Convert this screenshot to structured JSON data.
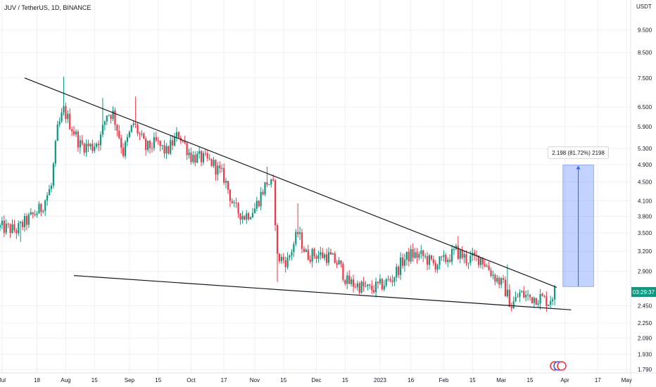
{
  "chart_data": {
    "type": "candlestick",
    "title": "JUV / TetherUS, 1D, BINANCE",
    "y_unit": "USDT",
    "y_scale": "log",
    "ylim": [
      1.76,
      11.0
    ],
    "y_ticks": [
      "9.500",
      "8.500",
      "7.500",
      "6.500",
      "5.900",
      "5.300",
      "4.900",
      "4.500",
      "4.100",
      "3.800",
      "3.500",
      "3.200",
      "2.900",
      "2.450",
      "2.250",
      "2.090",
      "1.930",
      "1.790"
    ],
    "x_ticks": [
      {
        "date": "2022-07-01",
        "label": "Jul"
      },
      {
        "date": "2022-07-18",
        "label": "18"
      },
      {
        "date": "2022-08-01",
        "label": "Aug"
      },
      {
        "date": "2022-08-15",
        "label": "15"
      },
      {
        "date": "2022-09-01",
        "label": "Sep"
      },
      {
        "date": "2022-09-15",
        "label": "15"
      },
      {
        "date": "2022-10-01",
        "label": "Oct"
      },
      {
        "date": "2022-10-17",
        "label": "17"
      },
      {
        "date": "2022-11-01",
        "label": "Nov"
      },
      {
        "date": "2022-11-15",
        "label": "15"
      },
      {
        "date": "2022-12-01",
        "label": "Dec"
      },
      {
        "date": "2022-12-15",
        "label": "15"
      },
      {
        "date": "2023-01-01",
        "label": "2023"
      },
      {
        "date": "2023-01-16",
        "label": "16"
      },
      {
        "date": "2023-02-01",
        "label": "Feb"
      },
      {
        "date": "2023-02-15",
        "label": "15"
      },
      {
        "date": "2023-03-01",
        "label": "Mar"
      },
      {
        "date": "2023-03-15",
        "label": "15"
      },
      {
        "date": "2023-04-01",
        "label": "Apr"
      },
      {
        "date": "2023-04-17",
        "label": "17"
      },
      {
        "date": "2023-05-01",
        "label": "May"
      }
    ],
    "x_range": [
      "2022-06-30",
      "2023-05-03"
    ],
    "price_path": [
      [
        "2022-06-30",
        3.6
      ],
      [
        "2022-07-08",
        3.55
      ],
      [
        "2022-07-14",
        3.75
      ],
      [
        "2022-07-20",
        3.95
      ],
      [
        "2022-07-25",
        4.4
      ],
      [
        "2022-07-28",
        5.8
      ],
      [
        "2022-07-31",
        6.4
      ],
      [
        "2022-08-03",
        6.0
      ],
      [
        "2022-08-08",
        5.4
      ],
      [
        "2022-08-14",
        5.35
      ],
      [
        "2022-08-18",
        5.6
      ],
      [
        "2022-08-21",
        6.3
      ],
      [
        "2022-08-24",
        6.3
      ],
      [
        "2022-08-29",
        5.2
      ],
      [
        "2022-09-03",
        6.0
      ],
      [
        "2022-09-09",
        5.3
      ],
      [
        "2022-09-14",
        5.45
      ],
      [
        "2022-09-19",
        5.2
      ],
      [
        "2022-09-25",
        5.7
      ],
      [
        "2022-10-01",
        5.1
      ],
      [
        "2022-10-06",
        5.05
      ],
      [
        "2022-10-11",
        4.95
      ],
      [
        "2022-10-17",
        4.6
      ],
      [
        "2022-10-22",
        3.95
      ],
      [
        "2022-10-27",
        3.8
      ],
      [
        "2022-11-01",
        3.95
      ],
      [
        "2022-11-07",
        4.5
      ],
      [
        "2022-11-10",
        4.4
      ],
      [
        "2022-11-12",
        3.1
      ],
      [
        "2022-11-17",
        3.05
      ],
      [
        "2022-11-22",
        3.5
      ],
      [
        "2022-11-26",
        3.15
      ],
      [
        "2022-12-01",
        3.15
      ],
      [
        "2022-12-07",
        3.12
      ],
      [
        "2022-12-12",
        3.0
      ],
      [
        "2022-12-16",
        2.75
      ],
      [
        "2022-12-22",
        2.7
      ],
      [
        "2022-12-27",
        2.65
      ],
      [
        "2023-01-01",
        2.7
      ],
      [
        "2023-01-07",
        2.8
      ],
      [
        "2023-01-12",
        3.05
      ],
      [
        "2023-01-16",
        3.15
      ],
      [
        "2023-01-22",
        3.12
      ],
      [
        "2023-01-27",
        3.0
      ],
      [
        "2023-02-01",
        3.05
      ],
      [
        "2023-02-07",
        3.2
      ],
      [
        "2023-02-12",
        3.08
      ],
      [
        "2023-02-19",
        3.1
      ],
      [
        "2023-02-25",
        2.85
      ],
      [
        "2023-03-02",
        2.7
      ],
      [
        "2023-03-06",
        2.45
      ],
      [
        "2023-03-10",
        2.6
      ],
      [
        "2023-03-15",
        2.55
      ],
      [
        "2023-03-20",
        2.55
      ],
      [
        "2023-03-24",
        2.5
      ],
      [
        "2023-03-27",
        2.62
      ]
    ],
    "wick_peaks": [
      [
        "2022-07-31",
        7.55
      ],
      [
        "2022-08-19",
        6.8
      ],
      [
        "2022-09-04",
        6.85
      ],
      [
        "2022-11-07",
        4.85
      ],
      [
        "2022-11-22",
        4.05
      ],
      [
        "2023-02-08",
        3.45
      ],
      [
        "2023-03-04",
        3.0
      ]
    ],
    "wick_troughs": [
      [
        "2022-07-10",
        3.35
      ],
      [
        "2022-11-12",
        2.75
      ],
      [
        "2023-03-06",
        2.38
      ],
      [
        "2023-03-20",
        2.4
      ]
    ],
    "annotations": {
      "upper_trendline": [
        [
          "2022-07-12",
          7.5
        ],
        [
          "2023-03-28",
          2.68
        ]
      ],
      "lower_trendline": [
        [
          "2022-08-05",
          2.84
        ],
        [
          "2023-04-04",
          2.4
        ]
      ],
      "projection": {
        "from_date": "2023-03-31",
        "to_date": "2023-04-15",
        "from_price": 2.69,
        "to_price": 4.89,
        "label": "2.198 (81.72%) 2198",
        "color": "#2962ff"
      },
      "last_price_badge": {
        "label": "03:29:37",
        "price": 2.62,
        "color": "#089981"
      }
    },
    "colors": {
      "up": "#089981",
      "down": "#f23645",
      "grid": "#eef0f4",
      "text": "#131722"
    },
    "grid": true
  },
  "title_text": "JUV / TetherUS, 1D, BINANCE"
}
